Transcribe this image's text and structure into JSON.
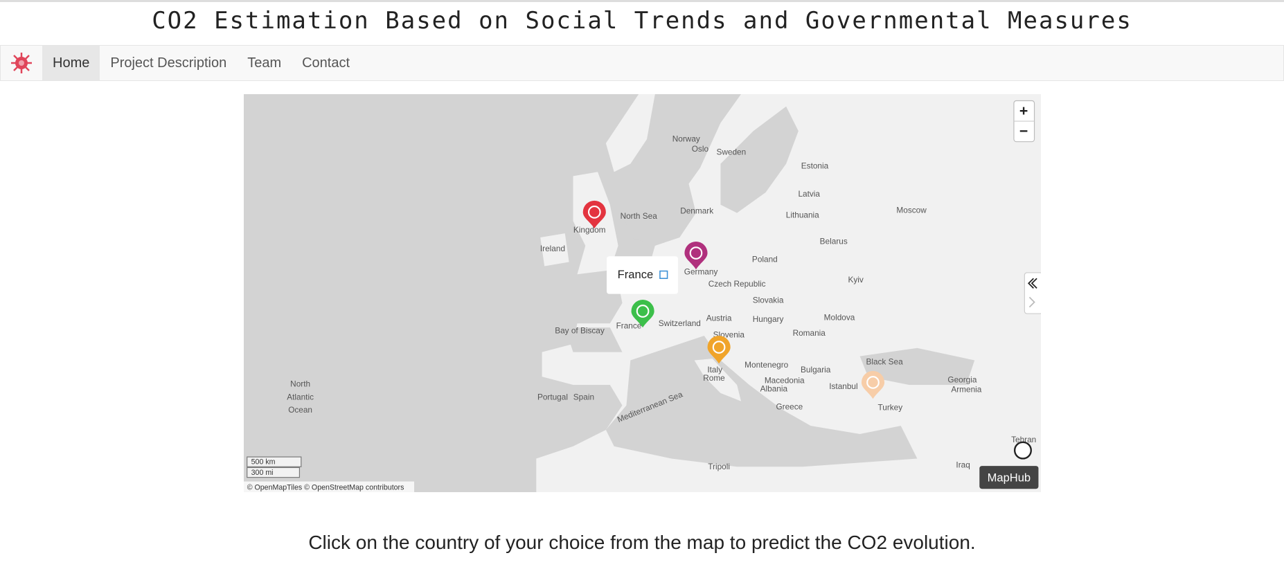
{
  "header": {
    "title": "CO2 Estimation Based on Social Trends and Governmental Measures"
  },
  "nav": {
    "items": [
      "Home",
      "Project Description",
      "Team",
      "Contact"
    ]
  },
  "map": {
    "zoom_in": "+",
    "zoom_out": "−",
    "labels": [
      "Norway",
      "Oslo",
      "Sweden",
      "Estonia",
      "Latvia",
      "Lithuania",
      "Moscow",
      "Belarus",
      "Poland",
      "Kyiv",
      "Denmark",
      "North Sea",
      "Kingdom",
      "Ireland",
      "Germany",
      "Czech Republic",
      "Slovakia",
      "Austria",
      "Hungary",
      "Moldova",
      "Romania",
      "Switzerland",
      "Slovenia",
      "Bay of Biscay",
      "France",
      "Italy",
      "Rome",
      "Bulgaria",
      "Black Sea",
      "Georgia",
      "Armenia",
      "Montenegro",
      "Macedonia",
      "Albania",
      "Istanbul",
      "Turkey",
      "Greece",
      "Portugal",
      "Spain",
      "North",
      "Atlantic",
      "Ocean",
      "Mediterranean Sea",
      "Tripoli",
      "Iraq",
      "Tehran"
    ],
    "popup": "France",
    "scale_km": "500 km",
    "scale_mi": "300 mi",
    "attribution": "© OpenMapTiles © OpenStreetMap contributors",
    "brand": "MapHub"
  },
  "footer": {
    "text": "Click on the country of your choice from the map to predict the CO2 evolution."
  }
}
